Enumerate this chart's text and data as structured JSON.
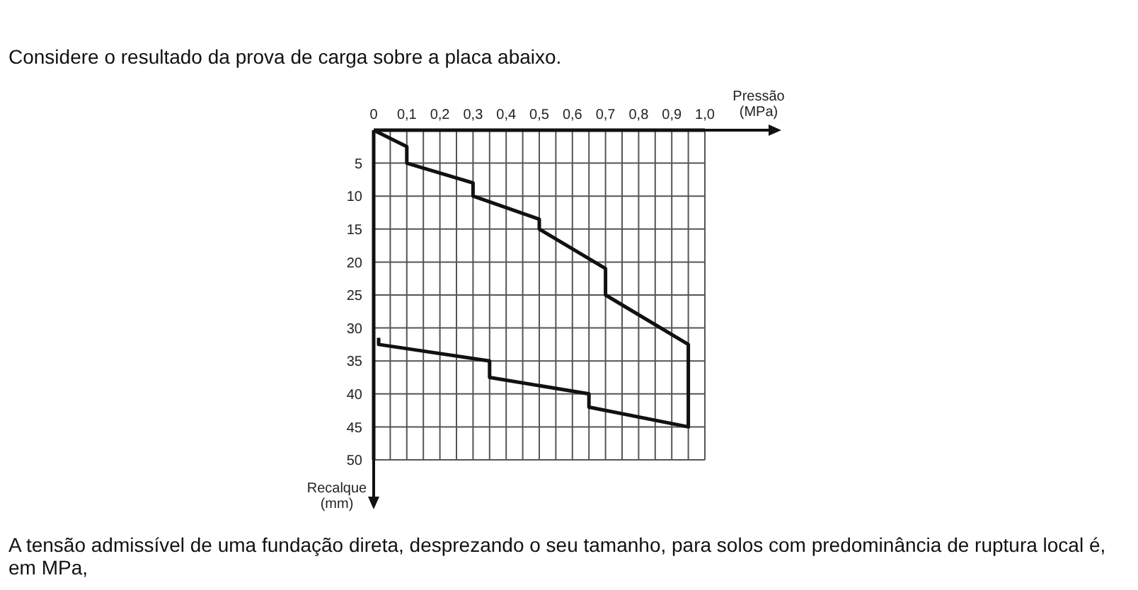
{
  "chart_data": {
    "type": "line",
    "title": "Considere o resultado da prova de carga sobre a placa abaixo.",
    "xlabel": "Pressão (MPa)",
    "ylabel": "Recalque (mm)",
    "annotations": [
      "A tensão admissível de uma fundação direta, desprezando o seu tamanho, para solos com predominância de ruptura local é, em MPa,"
    ],
    "series": [
      {
        "color": "#111111",
        "x": [
          0,
          0.1,
          0.1,
          0.3,
          0.3,
          0.5,
          0.5,
          0.7,
          0.7,
          0.95,
          0.95,
          0.65,
          0.65,
          0.35,
          0.35,
          0.015,
          0.015
        ],
        "values": [
          0,
          2.5,
          5,
          8,
          10,
          13.5,
          15,
          21,
          25,
          32.5,
          45,
          42,
          40,
          37.5,
          35,
          32.5,
          31.5
        ]
      }
    ],
    "xlim": [
      0,
      1.0
    ],
    "ylim": [
      50,
      0
    ],
    "xticks": [
      {
        "value": 0,
        "label": "0"
      },
      {
        "value": 0.05,
        "label": null
      },
      {
        "value": 0.1,
        "label": "0,1"
      },
      {
        "value": 0.15,
        "label": null
      },
      {
        "value": 0.2,
        "label": "0,2"
      },
      {
        "value": 0.25,
        "label": null
      },
      {
        "value": 0.3,
        "label": "0,3"
      },
      {
        "value": 0.35,
        "label": null
      },
      {
        "value": 0.4,
        "label": "0,4"
      },
      {
        "value": 0.45,
        "label": null
      },
      {
        "value": 0.5,
        "label": "0,5"
      },
      {
        "value": 0.55,
        "label": null
      },
      {
        "value": 0.6,
        "label": "0,6"
      },
      {
        "value": 0.65,
        "label": null
      },
      {
        "value": 0.7,
        "label": "0,7"
      },
      {
        "value": 0.75,
        "label": null
      },
      {
        "value": 0.8,
        "label": "0,8"
      },
      {
        "value": 0.85,
        "label": null
      },
      {
        "value": 0.9,
        "label": "0,9"
      },
      {
        "value": 0.95,
        "label": null
      },
      {
        "value": 1.0,
        "label": "1,0"
      }
    ],
    "yticks": [
      {
        "value": 0,
        "label": null
      },
      5,
      10,
      15,
      20,
      25,
      30,
      35,
      40,
      45,
      50
    ],
    "grid": true,
    "marker": "none",
    "line_style": "solid"
  }
}
